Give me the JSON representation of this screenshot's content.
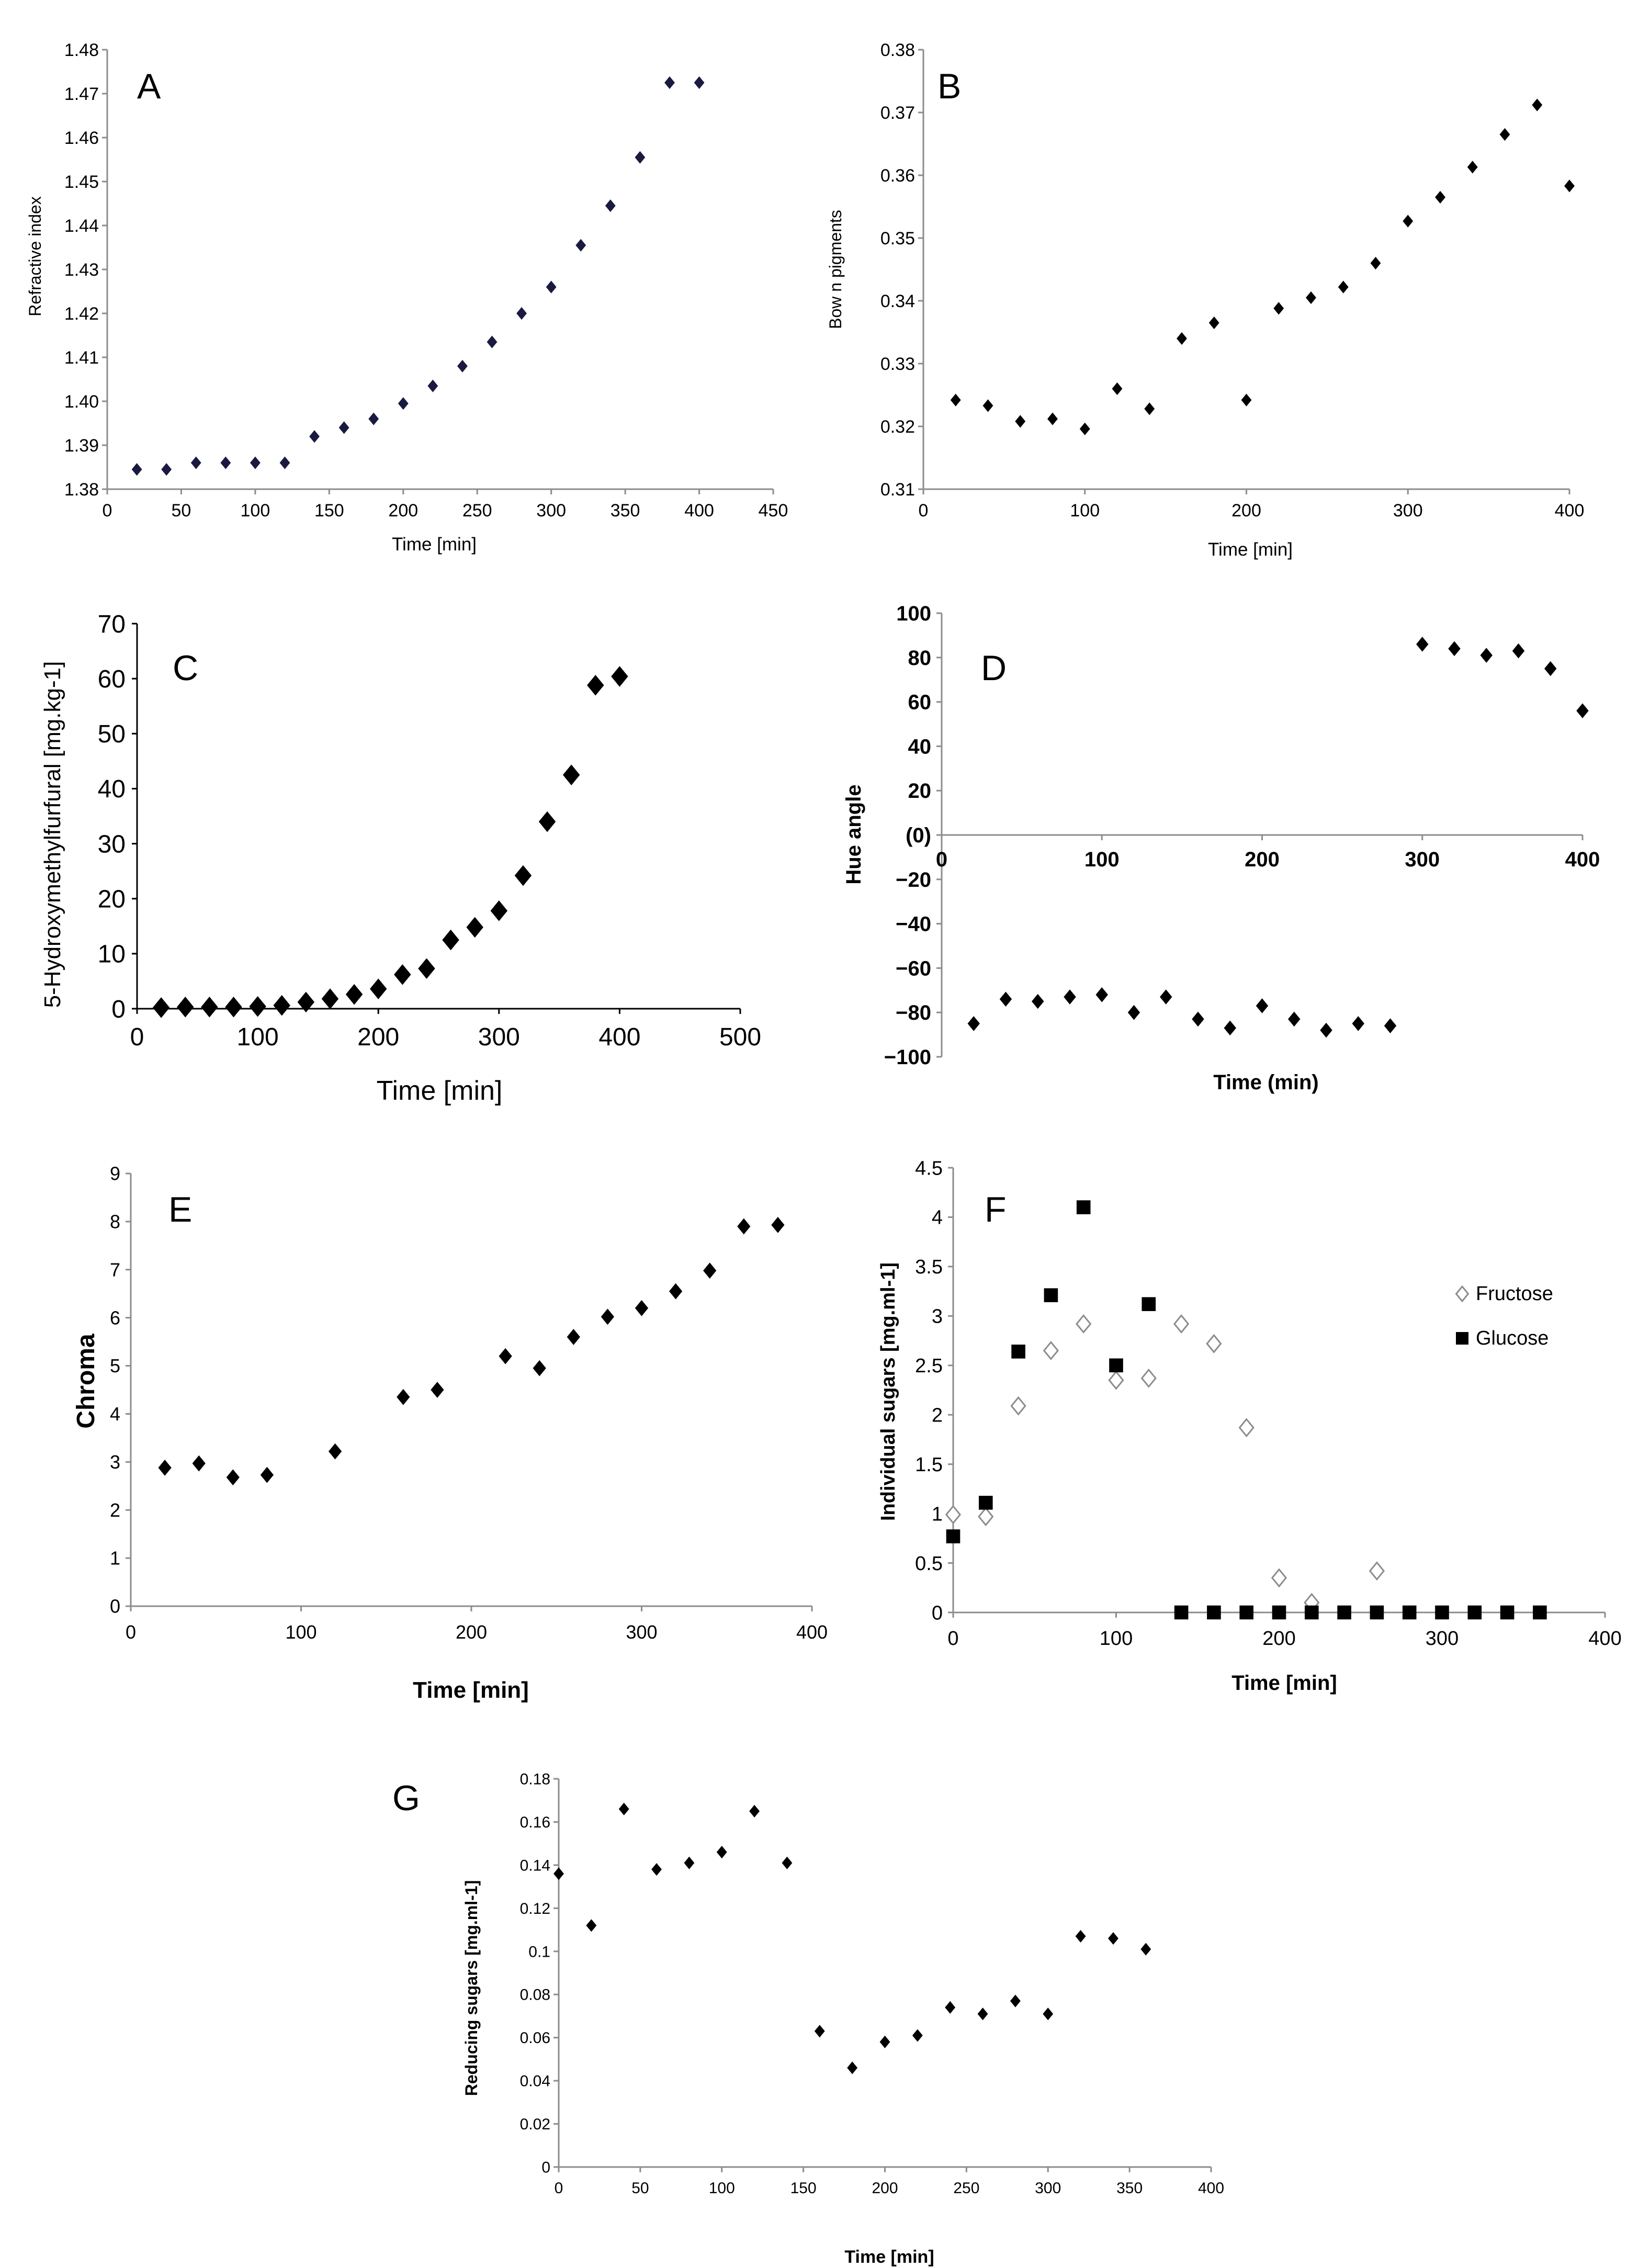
{
  "figure_title": "",
  "colors": {
    "marker": "#000000",
    "navy_marker": "#1a1a40",
    "axis": "#8c8c8c",
    "fructose": "#8c8c8c"
  },
  "chart_data": [
    {
      "id": "A",
      "type": "scatter",
      "panel_label": "A",
      "xlabel": "Time [min]",
      "ylabel": "Refractive index",
      "xlim": [
        0,
        450
      ],
      "ylim": [
        1.38,
        1.48
      ],
      "xticks": [
        "0",
        "50",
        "100",
        "150",
        "200",
        "250",
        "300",
        "350",
        "400",
        "450"
      ],
      "yticks": [
        "1.38",
        "1.39",
        "1.40",
        "1.41",
        "1.42",
        "1.43",
        "1.44",
        "1.45",
        "1.46",
        "1.47",
        "1.48"
      ],
      "series": [
        {
          "name": "Refractive index",
          "marker": "diamond",
          "color": "#1a1a40",
          "points": [
            [
              20,
              1.3845
            ],
            [
              40,
              1.3845
            ],
            [
              60,
              1.386
            ],
            [
              80,
              1.386
            ],
            [
              100,
              1.386
            ],
            [
              120,
              1.386
            ],
            [
              140,
              1.392
            ],
            [
              160,
              1.394
            ],
            [
              180,
              1.396
            ],
            [
              200,
              1.3995
            ],
            [
              220,
              1.4035
            ],
            [
              240,
              1.408
            ],
            [
              260,
              1.4135
            ],
            [
              280,
              1.42
            ],
            [
              300,
              1.426
            ],
            [
              320,
              1.4355
            ],
            [
              340,
              1.4445
            ],
            [
              360,
              1.4555
            ],
            [
              380,
              1.4725
            ],
            [
              400,
              1.4725
            ]
          ]
        }
      ]
    },
    {
      "id": "B",
      "type": "scatter",
      "panel_label": "B",
      "xlabel": "Time [min]",
      "ylabel": "Bow n pigments",
      "xlim": [
        0,
        400
      ],
      "ylim": [
        0.31,
        0.38
      ],
      "xticks": [
        "0",
        "100",
        "200",
        "300",
        "400"
      ],
      "yticks": [
        "0.31",
        "0.32",
        "0.33",
        "0.34",
        "0.35",
        "0.36",
        "0.37",
        "0.38"
      ],
      "series": [
        {
          "name": "Brown pigments",
          "marker": "diamond",
          "color": "#000000",
          "points": [
            [
              20,
              0.3242
            ],
            [
              40,
              0.3233
            ],
            [
              60,
              0.3208
            ],
            [
              80,
              0.3212
            ],
            [
              100,
              0.3196
            ],
            [
              120,
              0.326
            ],
            [
              140,
              0.3228
            ],
            [
              160,
              0.334
            ],
            [
              180,
              0.3365
            ],
            [
              200,
              0.3242
            ],
            [
              220,
              0.3388
            ],
            [
              240,
              0.3405
            ],
            [
              260,
              0.3422
            ],
            [
              280,
              0.346
            ],
            [
              300,
              0.3527
            ],
            [
              320,
              0.3565
            ],
            [
              340,
              0.3613
            ],
            [
              360,
              0.3665
            ],
            [
              380,
              0.3712
            ],
            [
              400,
              0.3583
            ]
          ]
        }
      ]
    },
    {
      "id": "C",
      "type": "scatter",
      "panel_label": "C",
      "xlabel": "Time  [min]",
      "ylabel": "5-Hydroxymethylfurfural  [mg.kg-1]",
      "xlim": [
        0,
        500
      ],
      "ylim": [
        0,
        70
      ],
      "xticks": [
        "0",
        "100",
        "200",
        "300",
        "400",
        "500"
      ],
      "yticks": [
        "0",
        "10",
        "20",
        "30",
        "40",
        "50",
        "60",
        "70"
      ],
      "series": [
        {
          "name": "HMF",
          "marker": "diamond",
          "color": "#000000",
          "points": [
            [
              20,
              0.2
            ],
            [
              40,
              0.3
            ],
            [
              60,
              0.3
            ],
            [
              80,
              0.3
            ],
            [
              100,
              0.4
            ],
            [
              120,
              0.6
            ],
            [
              140,
              1.2
            ],
            [
              160,
              1.8
            ],
            [
              180,
              2.6
            ],
            [
              200,
              3.6
            ],
            [
              220,
              6.2
            ],
            [
              240,
              7.3
            ],
            [
              260,
              12.5
            ],
            [
              280,
              14.8
            ],
            [
              300,
              17.8
            ],
            [
              320,
              24.2
            ],
            [
              340,
              34
            ],
            [
              360,
              42.5
            ],
            [
              380,
              58.8
            ],
            [
              400,
              60.4
            ]
          ]
        }
      ]
    },
    {
      "id": "D",
      "type": "scatter",
      "panel_label": "D",
      "xlabel": "Time (min)",
      "ylabel": "Hue angle",
      "xlim": [
        0,
        400
      ],
      "ylim": [
        -100,
        100
      ],
      "xticks": [
        "0",
        "100",
        "200",
        "300",
        "400"
      ],
      "yticks": [
        "−100",
        "−80",
        "−60",
        "−40",
        "−20",
        "(0)",
        "20",
        "40",
        "60",
        "80",
        "100"
      ],
      "series": [
        {
          "name": "Hue angle",
          "marker": "diamond",
          "color": "#000000",
          "points": [
            [
              20,
              -85
            ],
            [
              40,
              -74
            ],
            [
              60,
              -75
            ],
            [
              80,
              -73
            ],
            [
              100,
              -72
            ],
            [
              120,
              -80
            ],
            [
              140,
              -73
            ],
            [
              160,
              -83
            ],
            [
              180,
              -87
            ],
            [
              200,
              -77
            ],
            [
              220,
              -83
            ],
            [
              240,
              -88
            ],
            [
              260,
              -85
            ],
            [
              280,
              -86
            ],
            [
              300,
              86
            ],
            [
              320,
              84
            ],
            [
              340,
              81
            ],
            [
              360,
              83
            ],
            [
              380,
              75
            ],
            [
              400,
              56
            ]
          ]
        }
      ]
    },
    {
      "id": "E",
      "type": "scatter",
      "panel_label": "E",
      "xlabel": "Time [min]",
      "ylabel": "Chroma",
      "xlim": [
        0,
        400
      ],
      "ylim": [
        0,
        9
      ],
      "xticks": [
        "0",
        "100",
        "200",
        "300",
        "400"
      ],
      "yticks": [
        "0",
        "1",
        "2",
        "3",
        "4",
        "5",
        "6",
        "7",
        "8",
        "9"
      ],
      "series": [
        {
          "name": "Chroma",
          "marker": "diamond",
          "color": "#000000",
          "points": [
            [
              20,
              2.88
            ],
            [
              40,
              2.97
            ],
            [
              60,
              2.68
            ],
            [
              80,
              2.73
            ],
            [
              120,
              3.22
            ],
            [
              160,
              4.35
            ],
            [
              180,
              4.5
            ],
            [
              220,
              5.2
            ],
            [
              240,
              4.95
            ],
            [
              260,
              5.6
            ],
            [
              280,
              6.02
            ],
            [
              300,
              6.2
            ],
            [
              320,
              6.55
            ],
            [
              340,
              6.98
            ],
            [
              360,
              7.9
            ],
            [
              380,
              7.93
            ]
          ]
        }
      ]
    },
    {
      "id": "F",
      "type": "scatter",
      "panel_label": "F",
      "xlabel": "Time [min]",
      "ylabel": "Individual sugars [mg.ml-1]",
      "xlim": [
        0,
        400
      ],
      "ylim": [
        0,
        4.5
      ],
      "xticks": [
        "0",
        "100",
        "200",
        "300",
        "400"
      ],
      "yticks": [
        "0",
        "0.5",
        "1",
        "1.5",
        "2",
        "2.5",
        "3",
        "3.5",
        "4",
        "4.5"
      ],
      "legend": {
        "placement": "right",
        "entries": [
          "Fructose",
          "Glucose"
        ]
      },
      "series": [
        {
          "name": "Fructose",
          "marker": "open-diamond",
          "color": "#8c8c8c",
          "points": [
            [
              0,
              0.99
            ],
            [
              20,
              0.97
            ],
            [
              40,
              2.09
            ],
            [
              60,
              2.65
            ],
            [
              80,
              2.92
            ],
            [
              100,
              2.35
            ],
            [
              120,
              2.37
            ],
            [
              140,
              2.92
            ],
            [
              160,
              2.72
            ],
            [
              180,
              1.87
            ],
            [
              200,
              0.35
            ],
            [
              220,
              0.1
            ],
            [
              260,
              0.42
            ]
          ]
        },
        {
          "name": "Glucose",
          "marker": "square",
          "color": "#000000",
          "points": [
            [
              0,
              0.77
            ],
            [
              20,
              1.11
            ],
            [
              40,
              2.64
            ],
            [
              60,
              3.21
            ],
            [
              80,
              4.1
            ],
            [
              100,
              2.5
            ],
            [
              120,
              3.12
            ],
            [
              140,
              0
            ],
            [
              160,
              0
            ],
            [
              180,
              0
            ],
            [
              200,
              0
            ],
            [
              220,
              0
            ],
            [
              240,
              0
            ],
            [
              260,
              0
            ],
            [
              280,
              0
            ],
            [
              300,
              0
            ],
            [
              320,
              0
            ],
            [
              340,
              0
            ],
            [
              360,
              0
            ]
          ]
        }
      ]
    },
    {
      "id": "G",
      "type": "scatter",
      "panel_label": "G",
      "xlabel": "Time [min]",
      "ylabel": "Reducing sugars [mg.ml-1]",
      "xlim": [
        0,
        400
      ],
      "ylim": [
        0,
        0.18
      ],
      "xticks": [
        "0",
        "50",
        "100",
        "150",
        "200",
        "250",
        "300",
        "350",
        "400"
      ],
      "yticks": [
        "0",
        "0.02",
        "0.04",
        "0.06",
        "0.08",
        "0.1",
        "0.12",
        "0.14",
        "0.16",
        "0.18"
      ],
      "series": [
        {
          "name": "Reducing sugars",
          "marker": "diamond",
          "color": "#000000",
          "points": [
            [
              0,
              0.136
            ],
            [
              20,
              0.112
            ],
            [
              40,
              0.166
            ],
            [
              60,
              0.138
            ],
            [
              80,
              0.141
            ],
            [
              100,
              0.146
            ],
            [
              120,
              0.165
            ],
            [
              140,
              0.141
            ],
            [
              160,
              0.063
            ],
            [
              180,
              0.046
            ],
            [
              200,
              0.058
            ],
            [
              220,
              0.061
            ],
            [
              240,
              0.074
            ],
            [
              260,
              0.071
            ],
            [
              280,
              0.077
            ],
            [
              300,
              0.071
            ],
            [
              320,
              0.107
            ],
            [
              340,
              0.106
            ],
            [
              360,
              0.101
            ]
          ]
        }
      ]
    }
  ]
}
